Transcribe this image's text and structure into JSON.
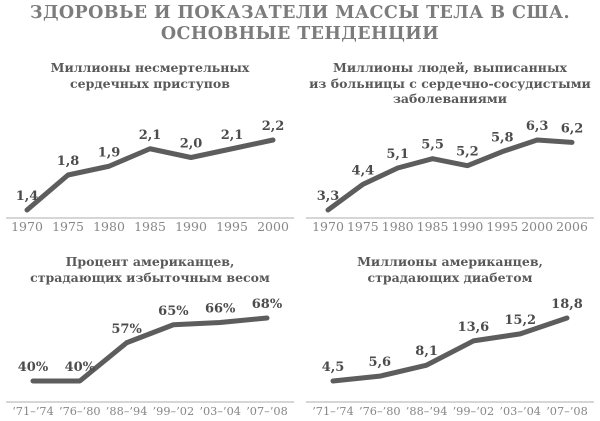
{
  "page_title": {
    "line1": "ЗДОРОВЬЕ И ПОКАЗАТЕЛИ МАССЫ ТЕЛА В США.",
    "line2": "ОСНОВНЫЕ ТЕНДЕНЦИИ"
  },
  "colors": {
    "background": "#ffffff",
    "main_title": "#7c7c7c",
    "chart_title": "#595959",
    "line": "#5d5d5d",
    "data_label": "#4c4c4c",
    "axis_line": "#c8c8c8",
    "axis_label": "#878787"
  },
  "chart_data": [
    {
      "type": "line",
      "title_lines": [
        "Миллионы несмертельных",
        "сердечных приступов"
      ],
      "categories": [
        "1970",
        "1975",
        "1980",
        "1985",
        "1990",
        "1995",
        "2000"
      ],
      "values": [
        1.4,
        1.8,
        1.9,
        2.1,
        2.0,
        2.1,
        2.2
      ],
      "value_labels": [
        "1,4",
        "1,8",
        "1,9",
        "2,1",
        "2,0",
        "2,1",
        "2,2"
      ],
      "ylim": [
        1.4,
        2.2
      ],
      "grid": "off",
      "legend": "none"
    },
    {
      "type": "line",
      "title_lines": [
        "Миллионы людей, выписанных",
        "из больницы с сердечно-сосудистыми",
        "заболеваниями"
      ],
      "categories": [
        "1970",
        "1975",
        "1980",
        "1985",
        "1990",
        "1995",
        "2000",
        "2006"
      ],
      "values": [
        3.3,
        4.4,
        5.1,
        5.5,
        5.2,
        5.8,
        6.3,
        6.2
      ],
      "value_labels": [
        "3,3",
        "4,4",
        "5,1",
        "5,5",
        "5,2",
        "5,8",
        "6,3",
        "6,2"
      ],
      "ylim": [
        3.3,
        6.3
      ],
      "grid": "off",
      "legend": "none"
    },
    {
      "type": "line",
      "title_lines": [
        "Процент американцев,",
        "страдающих избыточным весом"
      ],
      "categories": [
        "’71–’74",
        "’76–’80",
        "’88–’94",
        "’99–’02",
        "’03–’04",
        "’07–’08"
      ],
      "values": [
        40,
        40,
        57,
        65,
        66,
        68
      ],
      "value_labels": [
        "40%",
        "40%",
        "57%",
        "65%",
        "66%",
        "68%"
      ],
      "ylim": [
        40,
        68
      ],
      "grid": "off",
      "legend": "none"
    },
    {
      "type": "line",
      "title_lines": [
        "Миллионы американцев,",
        "страдающих диабетом"
      ],
      "categories": [
        "’71–’74",
        "’76–’80",
        "’88–’94",
        "’99–’02",
        "’03–’04",
        "’07–’08"
      ],
      "values": [
        4.5,
        5.6,
        8.1,
        13.6,
        15.2,
        18.8
      ],
      "value_labels": [
        "4,5",
        "5,6",
        "8,1",
        "13,6",
        "15,2",
        "18,8"
      ],
      "ylim": [
        4.5,
        18.8
      ],
      "grid": "off",
      "legend": "none"
    }
  ]
}
